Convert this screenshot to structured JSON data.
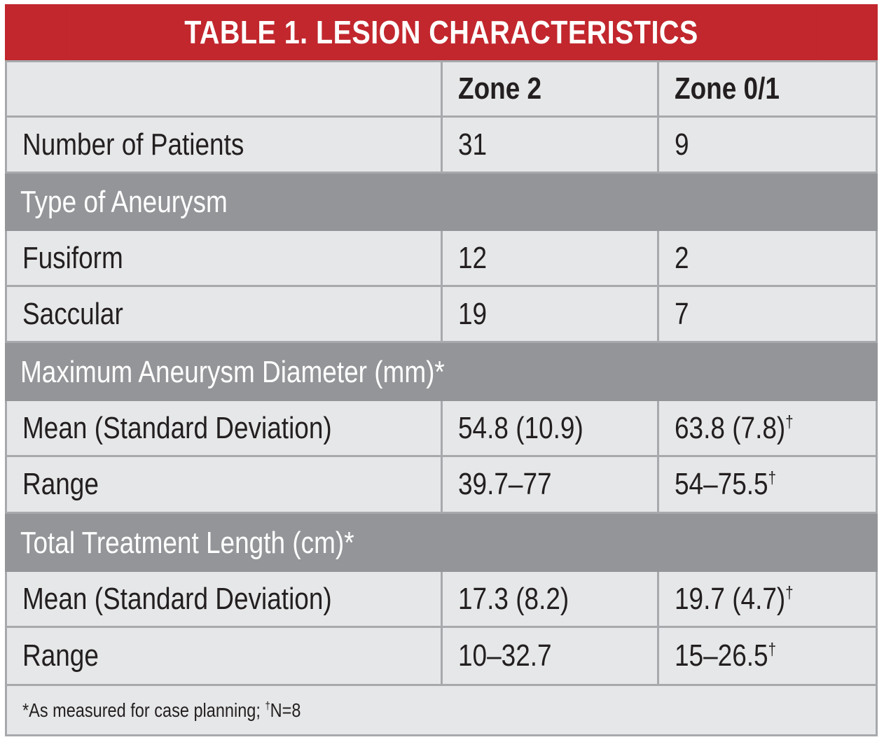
{
  "title": "TABLE 1.  LESION CHARACTERISTICS",
  "header": {
    "col0": "",
    "col1": "Zone 2",
    "col2": "Zone 0/1"
  },
  "rows": [
    {
      "label": "Number of Patients",
      "zone2": "31",
      "zone01": "9"
    },
    {
      "section": "Type of Aneurysm"
    },
    {
      "label": "Fusiform",
      "zone2": "12",
      "zone01": "2"
    },
    {
      "label": "Saccular",
      "zone2": "19",
      "zone01": "7"
    },
    {
      "section": "Maximum Aneurysm Diameter (mm)*"
    },
    {
      "label": "Mean (Standard Deviation)",
      "zone2": "54.8 (10.9)",
      "zone01": "63.8 (7.8)",
      "zone01_mark": "†"
    },
    {
      "label": "Range",
      "zone2": "39.7–77",
      "zone01": "54–75.5",
      "zone01_mark": "†"
    },
    {
      "section": "Total Treatment Length (cm)*"
    },
    {
      "label": "Mean (Standard Deviation)",
      "zone2": "17.3 (8.2)",
      "zone01": "19.7 (4.7)",
      "zone01_mark": "†"
    },
    {
      "label": "Range",
      "zone2": "10–32.7",
      "zone01": "15–26.5",
      "zone01_mark": "†"
    }
  ],
  "footnote": {
    "part1": "*As measured for case planning; ",
    "mark": "†",
    "part2": "N=8"
  },
  "colors": {
    "title_bg": "#c1272d",
    "section_bg": "#939598",
    "cell_bg": "#e6e7e8",
    "grid": "#a7a9ac"
  }
}
